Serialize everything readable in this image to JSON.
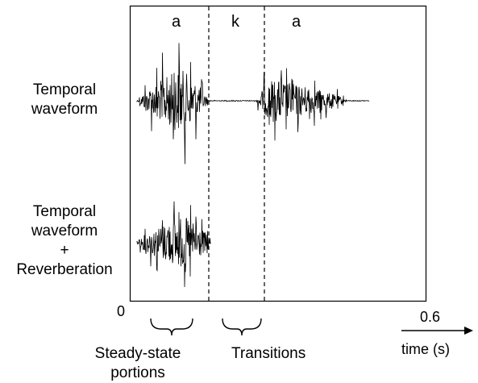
{
  "phonemes": [
    "a",
    "k",
    "a"
  ],
  "row_labels": {
    "top": [
      "Temporal",
      "waveform"
    ],
    "bottom": [
      "Temporal",
      "waveform",
      "+",
      "Reverberation"
    ]
  },
  "axis": {
    "start": "0",
    "end": "0.6",
    "label": "time (s)"
  },
  "annotations": {
    "steady_state": [
      "Steady-state",
      "portions"
    ],
    "transitions": "Transitions"
  },
  "colors": {
    "ink": "#000000",
    "background": "#ffffff"
  }
}
